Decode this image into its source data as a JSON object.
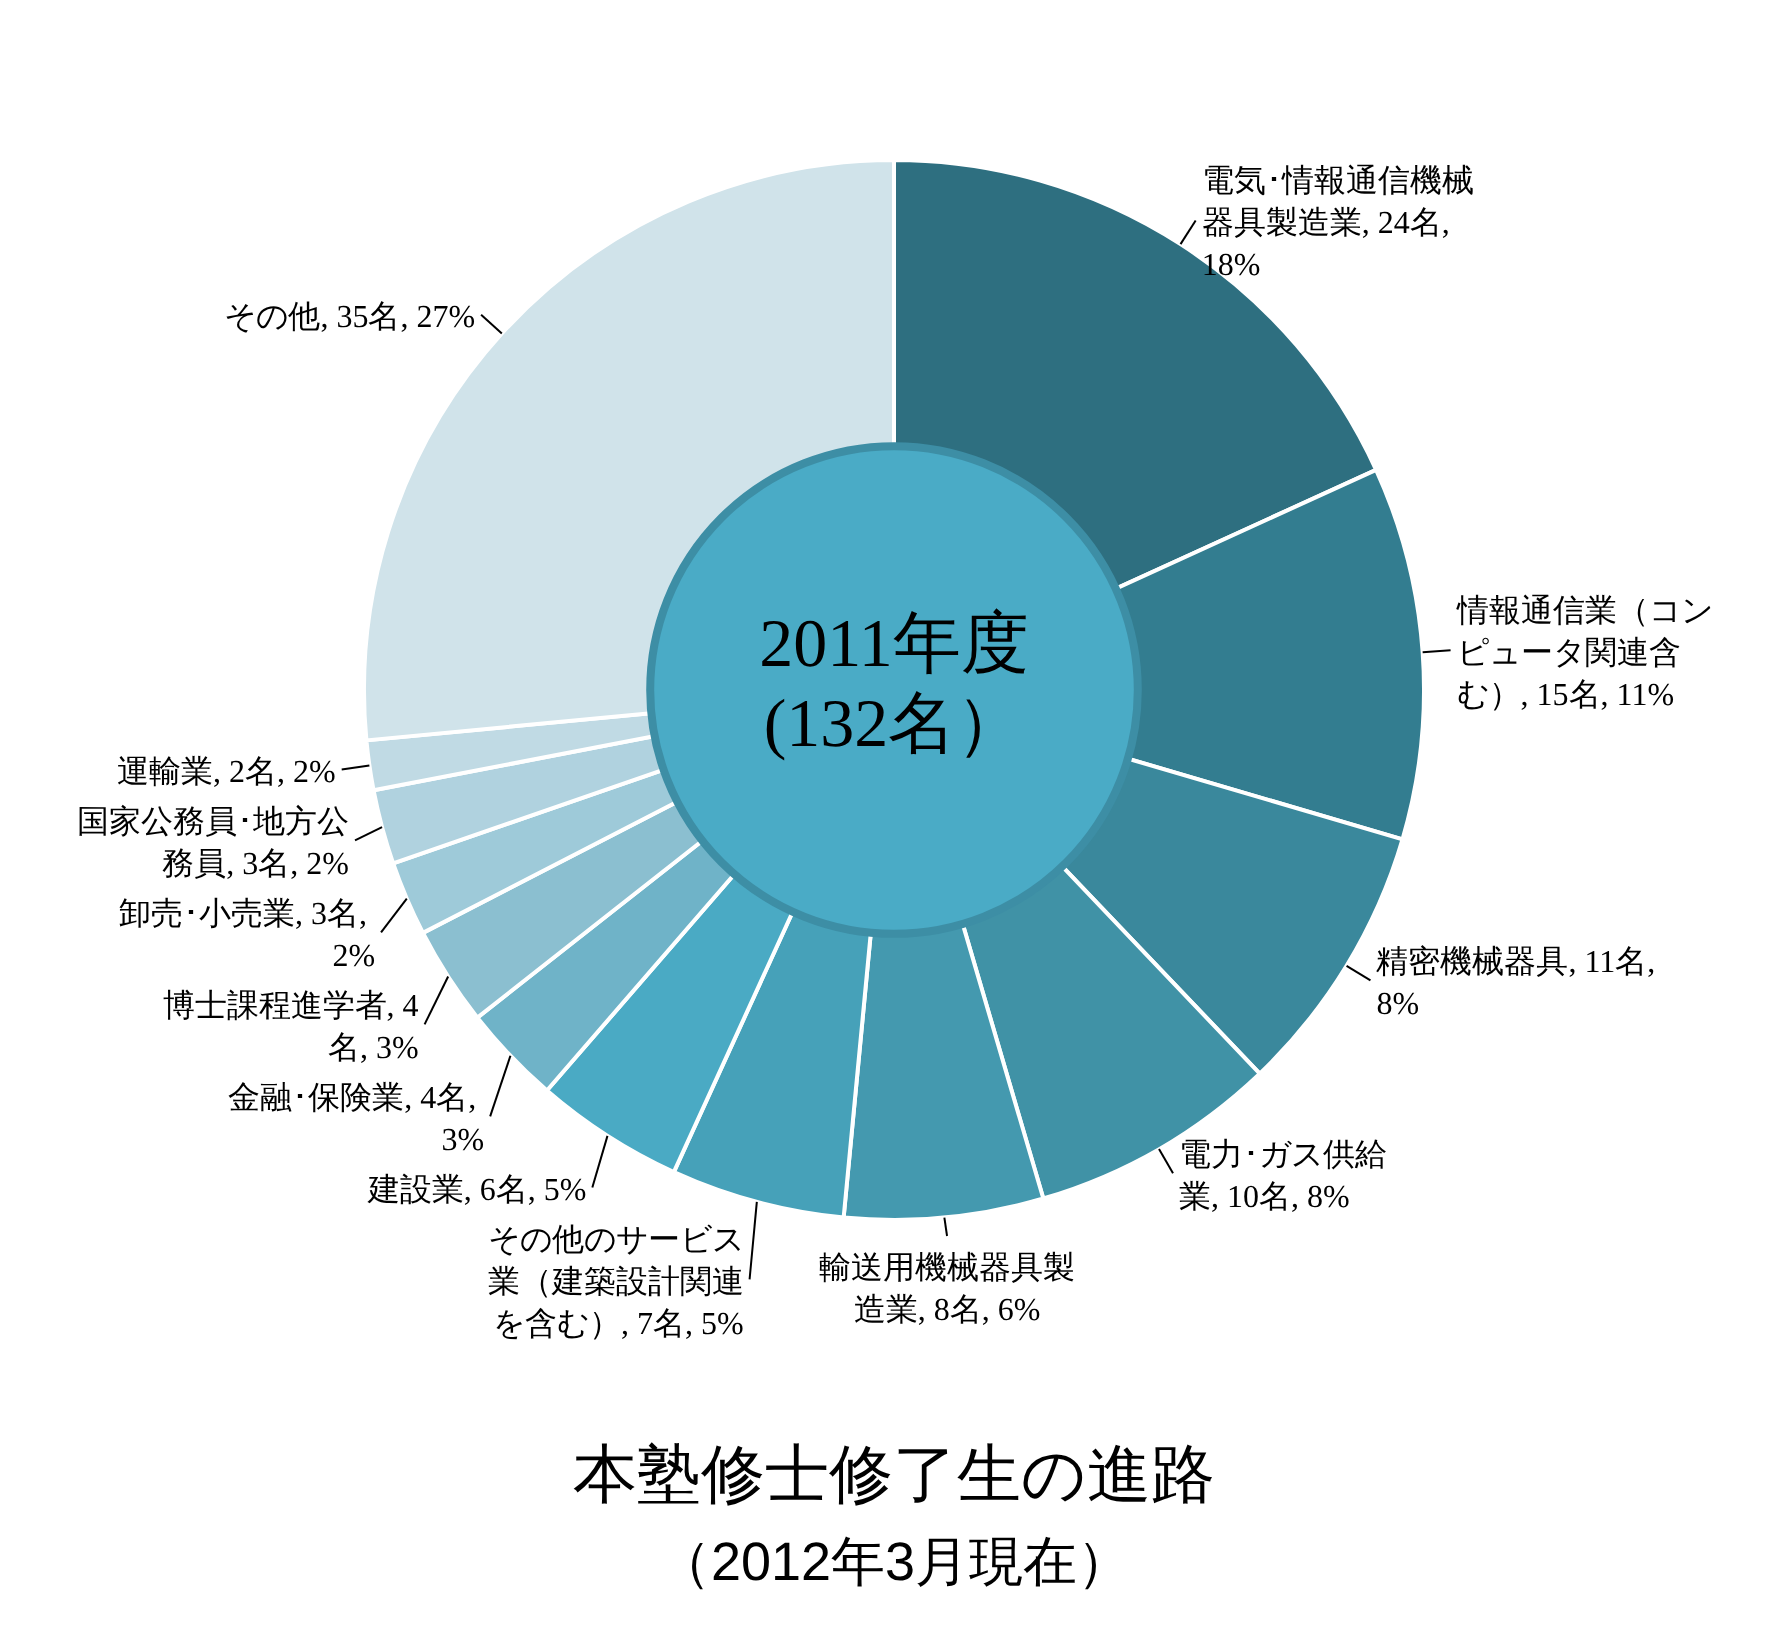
{
  "chart_data": {
    "type": "donut",
    "title": "本塾修士修了生の進路",
    "subtitle": "（2012年3月現在）",
    "annotations": [
      "2011年度",
      "(132名）"
    ],
    "categories": [
      "電気･情報通信機械器具製造業",
      "情報通信業（コンピュータ関連含む）",
      "精密機械器具",
      "電力･ガス供給業",
      "輸送用機械器具製造業",
      "その他のサービス業（建築設計関連を含む）",
      "建設業",
      "金融･保険業",
      "博士課程進学者",
      "卸売･小売業",
      "国家公務員･地方公務員",
      "運輸業",
      "その他"
    ],
    "values": [
      24,
      15,
      11,
      10,
      8,
      7,
      6,
      4,
      4,
      3,
      3,
      2,
      35
    ],
    "value_labels": [
      "24名, 18%",
      "15名, 11%",
      "11名, 8%",
      "10名, 8%",
      "8名, 6%",
      "7名, 5%",
      "6名, 5%",
      "4名, 3%",
      "4名, 3%",
      "3名, 2%",
      "3名, 2%",
      "2名, 2%",
      "35名, 27%"
    ],
    "colors": [
      "#2e6f80",
      "#337d90",
      "#3a889c",
      "#4092a6",
      "#4499af",
      "#46a1b9",
      "#4aaac4",
      "#6fb3c8",
      "#8bbfd0",
      "#9ecad9",
      "#b0d2df",
      "#c0dae4",
      "#d0e3ea"
    ]
  }
}
